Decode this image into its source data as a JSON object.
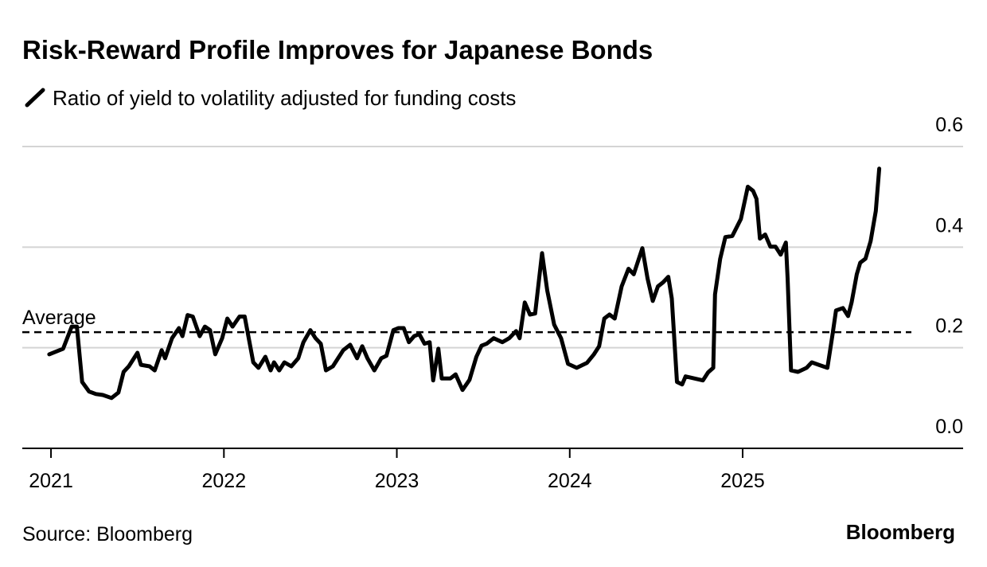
{
  "chart_data": {
    "type": "line",
    "title": "Risk-Reward Profile Improves for Japanese Bonds",
    "source": "Source: Bloomberg",
    "brand": "Bloomberg",
    "x": [
      2020.99,
      2021.07,
      2021.12,
      2021.15,
      2021.18,
      2021.22,
      2021.26,
      2021.3,
      2021.35,
      2021.39,
      2021.42,
      2021.45,
      2021.48,
      2021.5,
      2021.52,
      2021.57,
      2021.6,
      2021.64,
      2021.66,
      2021.7,
      2021.74,
      2021.76,
      2021.79,
      2021.82,
      2021.86,
      2021.89,
      2021.92,
      2021.95,
      2021.99,
      2022.02,
      2022.05,
      2022.09,
      2022.12,
      2022.17,
      2022.2,
      2022.24,
      2022.27,
      2022.29,
      2022.32,
      2022.35,
      2022.39,
      2022.43,
      2022.46,
      2022.5,
      2022.53,
      2022.56,
      2022.59,
      2022.63,
      2022.66,
      2022.69,
      2022.73,
      2022.77,
      2022.8,
      2022.83,
      2022.87,
      2022.91,
      2022.94,
      2022.98,
      2023.01,
      2023.04,
      2023.07,
      2023.1,
      2023.13,
      2023.16,
      2023.19,
      2023.21,
      2023.24,
      2023.26,
      2023.31,
      2023.34,
      2023.38,
      2023.42,
      2023.46,
      2023.49,
      2023.52,
      2023.56,
      2023.61,
      2023.65,
      2023.69,
      2023.71,
      2023.74,
      2023.77,
      2023.8,
      2023.84,
      2023.87,
      2023.91,
      2023.95,
      2023.99,
      2024.04,
      2024.1,
      2024.14,
      2024.17,
      2024.2,
      2024.23,
      2024.26,
      2024.3,
      2024.34,
      2024.37,
      2024.42,
      2024.45,
      2024.48,
      2024.51,
      2024.54,
      2024.57,
      2024.59,
      2024.62,
      2024.65,
      2024.67,
      2024.72,
      2024.77,
      2024.8,
      2024.83,
      2024.84,
      2024.87,
      2024.9,
      2024.94,
      2024.99,
      2025.03,
      2025.06,
      2025.08,
      2025.1,
      2025.13,
      2025.16,
      2025.19,
      2025.22,
      2025.25,
      2025.26,
      2025.28,
      2025.32,
      2025.37,
      2025.4,
      2025.44,
      2025.49,
      2025.52,
      2025.54,
      2025.58,
      2025.61,
      2025.63,
      2025.66,
      2025.68,
      2025.71,
      2025.74,
      2025.77,
      2025.79
    ],
    "series": [
      {
        "name": "Ratio of yield to volatility adjusted for funding costs",
        "color": "#000000",
        "values": [
          0.187,
          0.198,
          0.242,
          0.242,
          0.132,
          0.113,
          0.108,
          0.106,
          0.1,
          0.111,
          0.152,
          0.163,
          0.179,
          0.19,
          0.166,
          0.163,
          0.155,
          0.195,
          0.179,
          0.219,
          0.239,
          0.223,
          0.265,
          0.262,
          0.223,
          0.242,
          0.235,
          0.187,
          0.219,
          0.258,
          0.242,
          0.262,
          0.262,
          0.171,
          0.16,
          0.182,
          0.155,
          0.171,
          0.155,
          0.171,
          0.163,
          0.179,
          0.211,
          0.235,
          0.219,
          0.208,
          0.155,
          0.163,
          0.179,
          0.195,
          0.206,
          0.179,
          0.203,
          0.179,
          0.155,
          0.179,
          0.184,
          0.235,
          0.239,
          0.239,
          0.211,
          0.223,
          0.227,
          0.208,
          0.211,
          0.135,
          0.198,
          0.139,
          0.139,
          0.147,
          0.116,
          0.136,
          0.182,
          0.204,
          0.208,
          0.219,
          0.211,
          0.219,
          0.233,
          0.219,
          0.29,
          0.266,
          0.268,
          0.388,
          0.314,
          0.246,
          0.219,
          0.168,
          0.16,
          0.17,
          0.187,
          0.203,
          0.258,
          0.266,
          0.258,
          0.322,
          0.357,
          0.346,
          0.398,
          0.338,
          0.293,
          0.322,
          0.33,
          0.341,
          0.298,
          0.132,
          0.127,
          0.143,
          0.139,
          0.135,
          0.151,
          0.16,
          0.306,
          0.377,
          0.42,
          0.422,
          0.456,
          0.52,
          0.512,
          0.496,
          0.417,
          0.425,
          0.401,
          0.401,
          0.385,
          0.409,
          0.338,
          0.155,
          0.152,
          0.16,
          0.171,
          0.166,
          0.16,
          0.227,
          0.274,
          0.279,
          0.263,
          0.29,
          0.346,
          0.369,
          0.377,
          0.412,
          0.472,
          0.556
        ]
      }
    ],
    "average": {
      "label": "Average",
      "value": 0.231
    },
    "xlim": [
      2020.834,
      2026.275
    ],
    "xticks": [
      2021,
      2022,
      2023,
      2024,
      2025
    ],
    "ylim": [
      0,
      0.6
    ],
    "yticks": [
      {
        "value": 0,
        "label": "0.0"
      },
      0.2,
      0.4,
      0.6
    ],
    "grid": true
  }
}
